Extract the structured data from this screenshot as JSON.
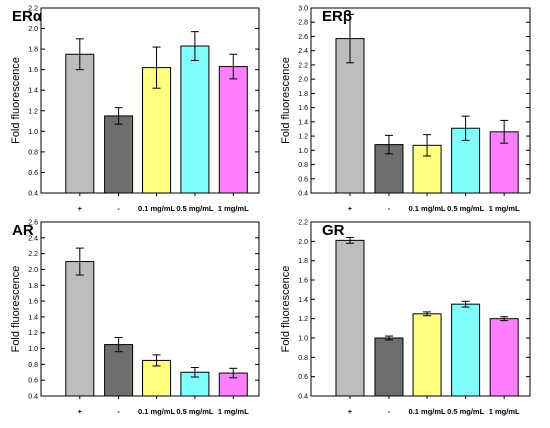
{
  "colors": [
    "#bdbdbd",
    "#6e6e6e",
    "#ffff80",
    "#80ffff",
    "#ff80ff"
  ],
  "chart_data": [
    {
      "type": "bar",
      "title": "ERα",
      "ylabel": "Fold fluorescence",
      "categories": [
        "+",
        "-",
        "0.1 mg/mL",
        "0.5 mg/mL",
        "1 mg/mL"
      ],
      "values": [
        1.75,
        1.15,
        1.62,
        1.83,
        1.63
      ],
      "errors": [
        0.15,
        0.08,
        0.2,
        0.14,
        0.12
      ],
      "ylim": [
        0.4,
        2.2
      ],
      "yticks": [
        "0.4",
        "0.6",
        "0.8",
        "1.0",
        "1.2",
        "1.4",
        "1.6",
        "1.8",
        "2.0",
        "2.2"
      ]
    },
    {
      "type": "bar",
      "title": "ERβ",
      "ylabel": "Fold fluorescence",
      "categories": [
        "+",
        "-",
        "0.1 mg/mL",
        "0.5 mg/mL",
        "1 mg/mL"
      ],
      "values": [
        2.57,
        1.08,
        1.07,
        1.31,
        1.26
      ],
      "errors": [
        0.34,
        0.13,
        0.15,
        0.17,
        0.16
      ],
      "ylim": [
        0.4,
        3.0
      ],
      "yticks": [
        "0.4",
        "0.6",
        "0.8",
        "1.0",
        "1.2",
        "1.4",
        "1.6",
        "1.8",
        "2.0",
        "2.2",
        "2.4",
        "2.6",
        "2.8",
        "3.0"
      ]
    },
    {
      "type": "bar",
      "title": "AR",
      "ylabel": "Fold fluorescence",
      "categories": [
        "+",
        "-",
        "0.1 mg/mL",
        "0.5 mg/mL",
        "1 mg/mL"
      ],
      "values": [
        2.1,
        1.05,
        0.85,
        0.7,
        0.69
      ],
      "errors": [
        0.17,
        0.09,
        0.07,
        0.06,
        0.06
      ],
      "ylim": [
        0.4,
        2.6
      ],
      "yticks": [
        "0.4",
        "0.6",
        "0.8",
        "1.0",
        "1.2",
        "1.4",
        "1.6",
        "1.8",
        "2.0",
        "2.2",
        "2.4",
        "2.6"
      ]
    },
    {
      "type": "bar",
      "title": "GR",
      "ylabel": "Fold fluorescence",
      "categories": [
        "+",
        "-",
        "0.1 mg/mL",
        "0.5 mg/mL",
        "1 mg/mL"
      ],
      "values": [
        2.01,
        1.0,
        1.25,
        1.35,
        1.2
      ],
      "errors": [
        0.03,
        0.02,
        0.02,
        0.03,
        0.02
      ],
      "ylim": [
        0.4,
        2.2
      ],
      "yticks": [
        "0.4",
        "0.6",
        "0.8",
        "1.0",
        "1.2",
        "1.4",
        "1.6",
        "1.8",
        "2.0",
        "2.2"
      ]
    }
  ]
}
